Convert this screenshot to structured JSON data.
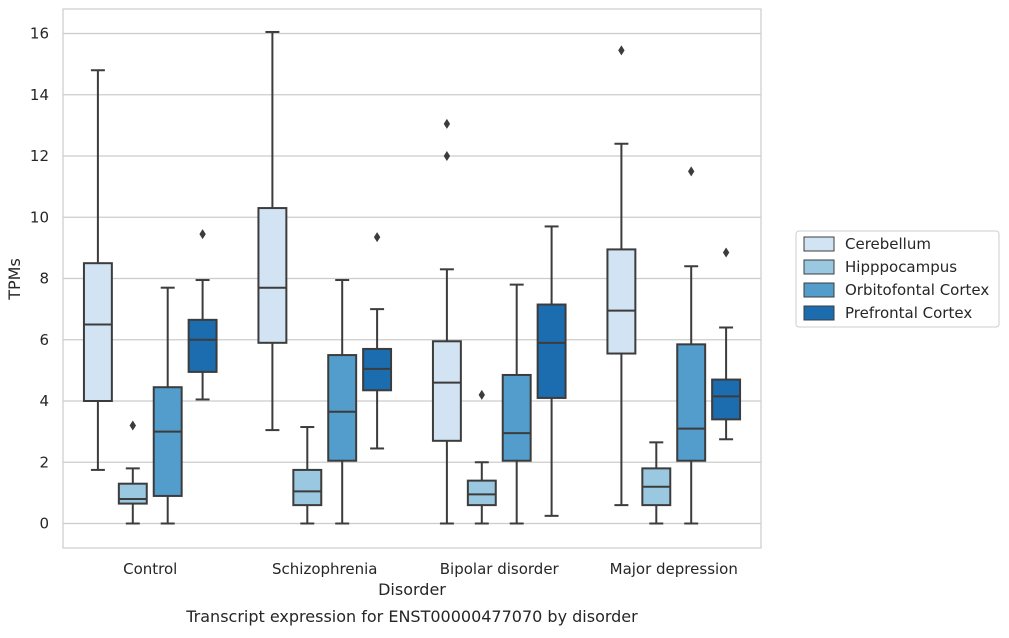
{
  "chart_data": {
    "type": "box",
    "caption": "Transcript expression for ENST00000477070 by disorder",
    "xlabel": "Disorder",
    "ylabel": "TPMs",
    "ylim": [
      -0.8,
      16.8
    ],
    "yticks": [
      0,
      2,
      4,
      6,
      8,
      10,
      12,
      14,
      16
    ],
    "grid": "horizontal",
    "legend_position": "right",
    "categories": [
      "Control",
      "Schizophrenia",
      "Bipolar disorder",
      "Major depression"
    ],
    "series": [
      {
        "name": "Cerebellum",
        "color": "#d2e3f3",
        "boxes": [
          {
            "whisker_low": 1.75,
            "q1": 4.0,
            "median": 6.5,
            "q3": 8.5,
            "whisker_high": 14.8,
            "outliers": []
          },
          {
            "whisker_low": 3.05,
            "q1": 5.9,
            "median": 7.7,
            "q3": 10.3,
            "whisker_high": 16.05,
            "outliers": []
          },
          {
            "whisker_low": 0.0,
            "q1": 2.7,
            "median": 4.6,
            "q3": 5.95,
            "whisker_high": 8.3,
            "outliers": [
              12.0,
              13.05
            ]
          },
          {
            "whisker_low": 0.6,
            "q1": 5.55,
            "median": 6.95,
            "q3": 8.95,
            "whisker_high": 12.4,
            "outliers": [
              15.45
            ]
          }
        ]
      },
      {
        "name": "Hipppocampus",
        "color": "#9ac8e0",
        "boxes": [
          {
            "whisker_low": 0.0,
            "q1": 0.65,
            "median": 0.8,
            "q3": 1.3,
            "whisker_high": 1.8,
            "outliers": [
              3.2
            ]
          },
          {
            "whisker_low": 0.0,
            "q1": 0.6,
            "median": 1.05,
            "q3": 1.75,
            "whisker_high": 3.15,
            "outliers": []
          },
          {
            "whisker_low": 0.0,
            "q1": 0.6,
            "median": 0.95,
            "q3": 1.4,
            "whisker_high": 2.0,
            "outliers": [
              4.2
            ]
          },
          {
            "whisker_low": 0.0,
            "q1": 0.6,
            "median": 1.2,
            "q3": 1.8,
            "whisker_high": 2.65,
            "outliers": []
          }
        ]
      },
      {
        "name": "Orbitofontal Cortex",
        "color": "#529dcc",
        "boxes": [
          {
            "whisker_low": 0.0,
            "q1": 0.9,
            "median": 3.0,
            "q3": 4.45,
            "whisker_high": 7.7,
            "outliers": []
          },
          {
            "whisker_low": 0.0,
            "q1": 2.05,
            "median": 3.65,
            "q3": 5.5,
            "whisker_high": 7.95,
            "outliers": []
          },
          {
            "whisker_low": 0.0,
            "q1": 2.05,
            "median": 2.95,
            "q3": 4.85,
            "whisker_high": 7.8,
            "outliers": []
          },
          {
            "whisker_low": 0.0,
            "q1": 2.05,
            "median": 3.1,
            "q3": 5.85,
            "whisker_high": 8.4,
            "outliers": [
              11.5
            ]
          }
        ]
      },
      {
        "name": "Prefrontal Cortex",
        "color": "#1c6cb0",
        "boxes": [
          {
            "whisker_low": 4.05,
            "q1": 4.95,
            "median": 6.0,
            "q3": 6.65,
            "whisker_high": 7.95,
            "outliers": [
              9.45
            ]
          },
          {
            "whisker_low": 2.45,
            "q1": 4.35,
            "median": 5.05,
            "q3": 5.7,
            "whisker_high": 7.0,
            "outliers": [
              9.35
            ]
          },
          {
            "whisker_low": 0.25,
            "q1": 4.1,
            "median": 5.9,
            "q3": 7.15,
            "whisker_high": 9.7,
            "outliers": []
          },
          {
            "whisker_low": 2.75,
            "q1": 3.4,
            "median": 4.15,
            "q3": 4.7,
            "whisker_high": 6.4,
            "outliers": [
              8.85
            ]
          }
        ]
      }
    ]
  }
}
